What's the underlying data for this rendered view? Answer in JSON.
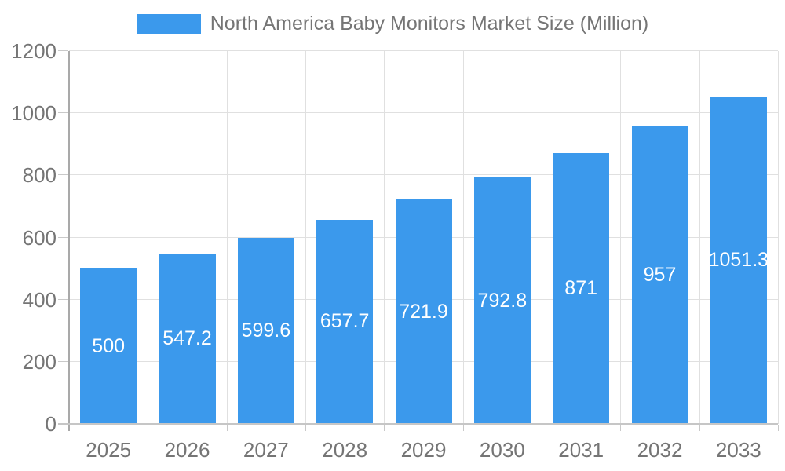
{
  "legend": {
    "label": "North America Baby Monitors Market Size (Million)"
  },
  "chart_data": {
    "type": "bar",
    "title": "North America Baby Monitors Market Size (Million)",
    "categories": [
      "2025",
      "2026",
      "2027",
      "2028",
      "2029",
      "2030",
      "2031",
      "2032",
      "2033"
    ],
    "values": [
      500,
      547.2,
      599.6,
      657.7,
      721.9,
      792.8,
      871,
      957,
      1051.3
    ],
    "xlabel": "",
    "ylabel": "",
    "ylim": [
      0,
      1200
    ],
    "yticks": [
      0,
      200,
      400,
      600,
      800,
      1000,
      1200
    ],
    "grid": true,
    "legend_position": "top-center",
    "colors": {
      "bar": "#3b99ec",
      "bar_label": "#ffffff",
      "axis_text": "#757575",
      "grid": "#e0e0e0",
      "axis_line": "#a9a9a9",
      "baseline": "#c6c6c6",
      "tick": "#c9c9c9",
      "background": "#ffffff"
    }
  }
}
